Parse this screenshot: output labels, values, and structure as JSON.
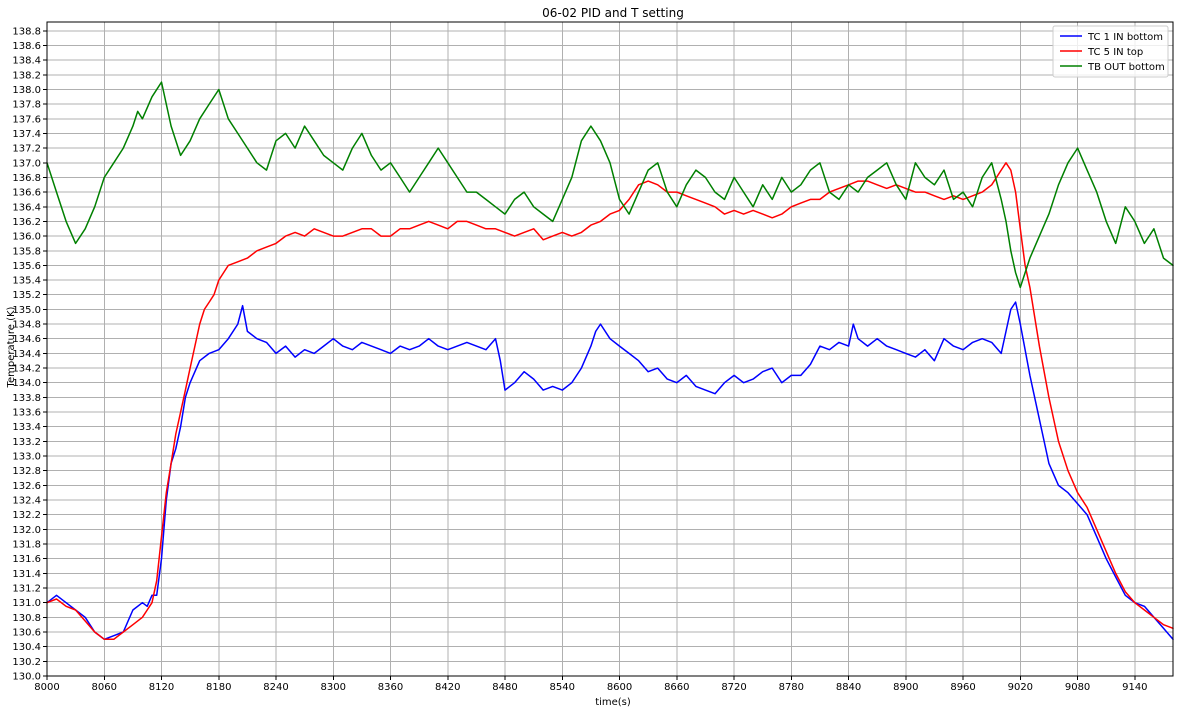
{
  "colors": {
    "background": "#ffffff",
    "grid": "#b0b0b0",
    "axes": "#000000",
    "tc1": "#0000ff",
    "tc5": "#ff0000",
    "tb": "#008000"
  },
  "chart_data": {
    "type": "line",
    "title": "06-02 PID and T setting",
    "xlabel": "time(s)",
    "ylabel": "Temperature (K)",
    "xlim": [
      8000,
      9180
    ],
    "ylim": [
      130.0,
      138.92
    ],
    "grid": true,
    "legend_position": "top-right",
    "x_ticks": [
      8000,
      8060,
      8120,
      8180,
      8240,
      8300,
      8360,
      8420,
      8480,
      8540,
      8600,
      8660,
      8720,
      8780,
      8840,
      8900,
      8960,
      9020,
      9080,
      9140
    ],
    "y_ticks": [
      130.0,
      130.2,
      130.4,
      130.6,
      130.8,
      131.0,
      131.2,
      131.4,
      131.6,
      131.8,
      132.0,
      132.2,
      132.4,
      132.6,
      132.8,
      133.0,
      133.2,
      133.4,
      133.6,
      133.8,
      134.0,
      134.2,
      134.4,
      134.6,
      134.8,
      135.0,
      135.2,
      135.4,
      135.6,
      135.8,
      136.0,
      136.2,
      136.4,
      136.6,
      136.8,
      137.0,
      137.2,
      137.4,
      137.6,
      137.8,
      138.0,
      138.2,
      138.4,
      138.6,
      138.8
    ],
    "series": [
      {
        "name": "TC 1 IN bottom",
        "color": "#0000ff",
        "x": [
          8000,
          8010,
          8020,
          8030,
          8040,
          8050,
          8060,
          8070,
          8080,
          8090,
          8100,
          8105,
          8110,
          8115,
          8120,
          8125,
          8130,
          8135,
          8140,
          8145,
          8150,
          8160,
          8170,
          8180,
          8190,
          8200,
          8205,
          8210,
          8220,
          8230,
          8240,
          8250,
          8260,
          8270,
          8280,
          8290,
          8300,
          8310,
          8320,
          8330,
          8340,
          8350,
          8360,
          8370,
          8380,
          8390,
          8400,
          8410,
          8420,
          8430,
          8440,
          8450,
          8460,
          8470,
          8475,
          8480,
          8490,
          8500,
          8510,
          8520,
          8530,
          8540,
          8550,
          8560,
          8570,
          8575,
          8580,
          8590,
          8600,
          8610,
          8620,
          8630,
          8640,
          8650,
          8660,
          8670,
          8680,
          8690,
          8700,
          8710,
          8720,
          8730,
          8740,
          8750,
          8760,
          8770,
          8780,
          8790,
          8800,
          8810,
          8820,
          8830,
          8840,
          8845,
          8850,
          8860,
          8870,
          8880,
          8890,
          8900,
          8910,
          8920,
          8930,
          8940,
          8950,
          8960,
          8970,
          8980,
          8990,
          9000,
          9005,
          9010,
          9015,
          9020,
          9030,
          9040,
          9050,
          9060,
          9070,
          9080,
          9090,
          9100,
          9110,
          9120,
          9130,
          9140,
          9150,
          9160,
          9170,
          9180
        ],
        "y": [
          131.0,
          131.1,
          131.0,
          130.9,
          130.8,
          130.6,
          130.5,
          130.55,
          130.6,
          130.9,
          131.0,
          130.95,
          131.1,
          131.1,
          131.6,
          132.4,
          132.9,
          133.1,
          133.4,
          133.8,
          134.0,
          134.3,
          134.4,
          134.45,
          134.6,
          134.8,
          135.05,
          134.7,
          134.6,
          134.55,
          134.4,
          134.5,
          134.35,
          134.45,
          134.4,
          134.5,
          134.6,
          134.5,
          134.45,
          134.55,
          134.5,
          134.45,
          134.4,
          134.5,
          134.45,
          134.5,
          134.6,
          134.5,
          134.45,
          134.5,
          134.55,
          134.5,
          134.45,
          134.6,
          134.3,
          133.9,
          134.0,
          134.15,
          134.05,
          133.9,
          133.95,
          133.9,
          134.0,
          134.2,
          134.5,
          134.7,
          134.8,
          134.6,
          134.5,
          134.4,
          134.3,
          134.15,
          134.2,
          134.05,
          134.0,
          134.1,
          133.95,
          133.9,
          133.85,
          134.0,
          134.1,
          134.0,
          134.05,
          134.15,
          134.2,
          134.0,
          134.1,
          134.1,
          134.25,
          134.5,
          134.45,
          134.55,
          134.5,
          134.8,
          134.6,
          134.5,
          134.6,
          134.5,
          134.45,
          134.4,
          134.35,
          134.45,
          134.3,
          134.6,
          134.5,
          134.45,
          134.55,
          134.6,
          134.55,
          134.4,
          134.7,
          135.0,
          135.1,
          134.8,
          134.1,
          133.5,
          132.9,
          132.6,
          132.5,
          132.35,
          132.2,
          131.9,
          131.6,
          131.35,
          131.1,
          131.0,
          130.95,
          130.8,
          130.65,
          130.5
        ]
      },
      {
        "name": "TC 5 IN top",
        "color": "#ff0000",
        "x": [
          8000,
          8010,
          8020,
          8030,
          8040,
          8050,
          8060,
          8070,
          8080,
          8090,
          8100,
          8105,
          8110,
          8115,
          8120,
          8125,
          8130,
          8135,
          8140,
          8145,
          8150,
          8155,
          8160,
          8165,
          8170,
          8175,
          8180,
          8190,
          8200,
          8210,
          8220,
          8230,
          8240,
          8250,
          8260,
          8270,
          8280,
          8290,
          8300,
          8310,
          8320,
          8330,
          8340,
          8350,
          8360,
          8370,
          8380,
          8390,
          8400,
          8410,
          8420,
          8430,
          8440,
          8450,
          8460,
          8470,
          8480,
          8490,
          8500,
          8510,
          8520,
          8530,
          8540,
          8550,
          8560,
          8570,
          8580,
          8590,
          8600,
          8610,
          8620,
          8630,
          8640,
          8650,
          8660,
          8670,
          8680,
          8690,
          8700,
          8710,
          8720,
          8730,
          8740,
          8750,
          8760,
          8770,
          8780,
          8790,
          8800,
          8810,
          8820,
          8830,
          8840,
          8850,
          8860,
          8870,
          8880,
          8890,
          8900,
          8910,
          8920,
          8930,
          8940,
          8950,
          8960,
          8970,
          8980,
          8990,
          9000,
          9005,
          9010,
          9015,
          9020,
          9025,
          9030,
          9040,
          9050,
          9060,
          9070,
          9080,
          9090,
          9100,
          9110,
          9120,
          9130,
          9140,
          9150,
          9160,
          9170,
          9180
        ],
        "y": [
          131.0,
          131.05,
          130.95,
          130.9,
          130.75,
          130.6,
          130.5,
          130.5,
          130.6,
          130.7,
          130.8,
          130.9,
          131.0,
          131.3,
          131.9,
          132.5,
          132.9,
          133.3,
          133.6,
          133.9,
          134.2,
          134.5,
          134.8,
          135.0,
          135.1,
          135.2,
          135.4,
          135.6,
          135.65,
          135.7,
          135.8,
          135.85,
          135.9,
          136.0,
          136.05,
          136.0,
          136.1,
          136.05,
          136.0,
          136.0,
          136.05,
          136.1,
          136.1,
          136.0,
          136.0,
          136.1,
          136.1,
          136.15,
          136.2,
          136.15,
          136.1,
          136.2,
          136.2,
          136.15,
          136.1,
          136.1,
          136.05,
          136.0,
          136.05,
          136.1,
          135.95,
          136.0,
          136.05,
          136.0,
          136.05,
          136.15,
          136.2,
          136.3,
          136.35,
          136.5,
          136.7,
          136.75,
          136.7,
          136.6,
          136.6,
          136.55,
          136.5,
          136.45,
          136.4,
          136.3,
          136.35,
          136.3,
          136.35,
          136.3,
          136.25,
          136.3,
          136.4,
          136.45,
          136.5,
          136.5,
          136.6,
          136.65,
          136.7,
          136.75,
          136.75,
          136.7,
          136.65,
          136.7,
          136.65,
          136.6,
          136.6,
          136.55,
          136.5,
          136.55,
          136.5,
          136.55,
          136.6,
          136.7,
          136.9,
          137.0,
          136.9,
          136.6,
          136.1,
          135.6,
          135.3,
          134.5,
          133.8,
          133.2,
          132.8,
          132.5,
          132.3,
          132.0,
          131.7,
          131.4,
          131.15,
          131.0,
          130.9,
          130.8,
          130.7,
          130.65
        ]
      },
      {
        "name": "TB OUT bottom",
        "color": "#008000",
        "x": [
          8000,
          8010,
          8020,
          8030,
          8040,
          8050,
          8060,
          8070,
          8080,
          8090,
          8095,
          8100,
          8110,
          8120,
          8130,
          8140,
          8150,
          8160,
          8170,
          8180,
          8190,
          8200,
          8210,
          8220,
          8230,
          8240,
          8250,
          8260,
          8270,
          8280,
          8290,
          8300,
          8310,
          8320,
          8330,
          8340,
          8350,
          8360,
          8370,
          8380,
          8390,
          8400,
          8410,
          8420,
          8430,
          8440,
          8450,
          8460,
          8470,
          8480,
          8490,
          8500,
          8510,
          8520,
          8530,
          8540,
          8550,
          8560,
          8570,
          8580,
          8590,
          8600,
          8610,
          8620,
          8630,
          8640,
          8650,
          8660,
          8670,
          8680,
          8690,
          8700,
          8710,
          8720,
          8730,
          8740,
          8750,
          8760,
          8770,
          8780,
          8790,
          8800,
          8810,
          8820,
          8830,
          8840,
          8850,
          8860,
          8870,
          8880,
          8890,
          8900,
          8910,
          8920,
          8930,
          8940,
          8950,
          8960,
          8970,
          8980,
          8990,
          9000,
          9005,
          9010,
          9015,
          9020,
          9030,
          9040,
          9050,
          9060,
          9070,
          9080,
          9090,
          9100,
          9110,
          9120,
          9130,
          9140,
          9150,
          9160,
          9170,
          9180
        ],
        "y": [
          137.0,
          136.6,
          136.2,
          135.9,
          136.1,
          136.4,
          136.8,
          137.0,
          137.2,
          137.5,
          137.7,
          137.6,
          137.9,
          138.1,
          137.5,
          137.1,
          137.3,
          137.6,
          137.8,
          138.0,
          137.6,
          137.4,
          137.2,
          137.0,
          136.9,
          137.3,
          137.4,
          137.2,
          137.5,
          137.3,
          137.1,
          137.0,
          136.9,
          137.2,
          137.4,
          137.1,
          136.9,
          137.0,
          136.8,
          136.6,
          136.8,
          137.0,
          137.2,
          137.0,
          136.8,
          136.6,
          136.6,
          136.5,
          136.4,
          136.3,
          136.5,
          136.6,
          136.4,
          136.3,
          136.2,
          136.5,
          136.8,
          137.3,
          137.5,
          137.3,
          137.0,
          136.5,
          136.3,
          136.6,
          136.9,
          137.0,
          136.6,
          136.4,
          136.7,
          136.9,
          136.8,
          136.6,
          136.5,
          136.8,
          136.6,
          136.4,
          136.7,
          136.5,
          136.8,
          136.6,
          136.7,
          136.9,
          137.0,
          136.6,
          136.5,
          136.7,
          136.6,
          136.8,
          136.9,
          137.0,
          136.7,
          136.5,
          137.0,
          136.8,
          136.7,
          136.9,
          136.5,
          136.6,
          136.4,
          136.8,
          137.0,
          136.5,
          136.2,
          135.8,
          135.5,
          135.3,
          135.7,
          136.0,
          136.3,
          136.7,
          137.0,
          137.2,
          136.9,
          136.6,
          136.2,
          135.9,
          136.4,
          136.2,
          135.9,
          136.1,
          135.7,
          135.6
        ]
      }
    ]
  }
}
